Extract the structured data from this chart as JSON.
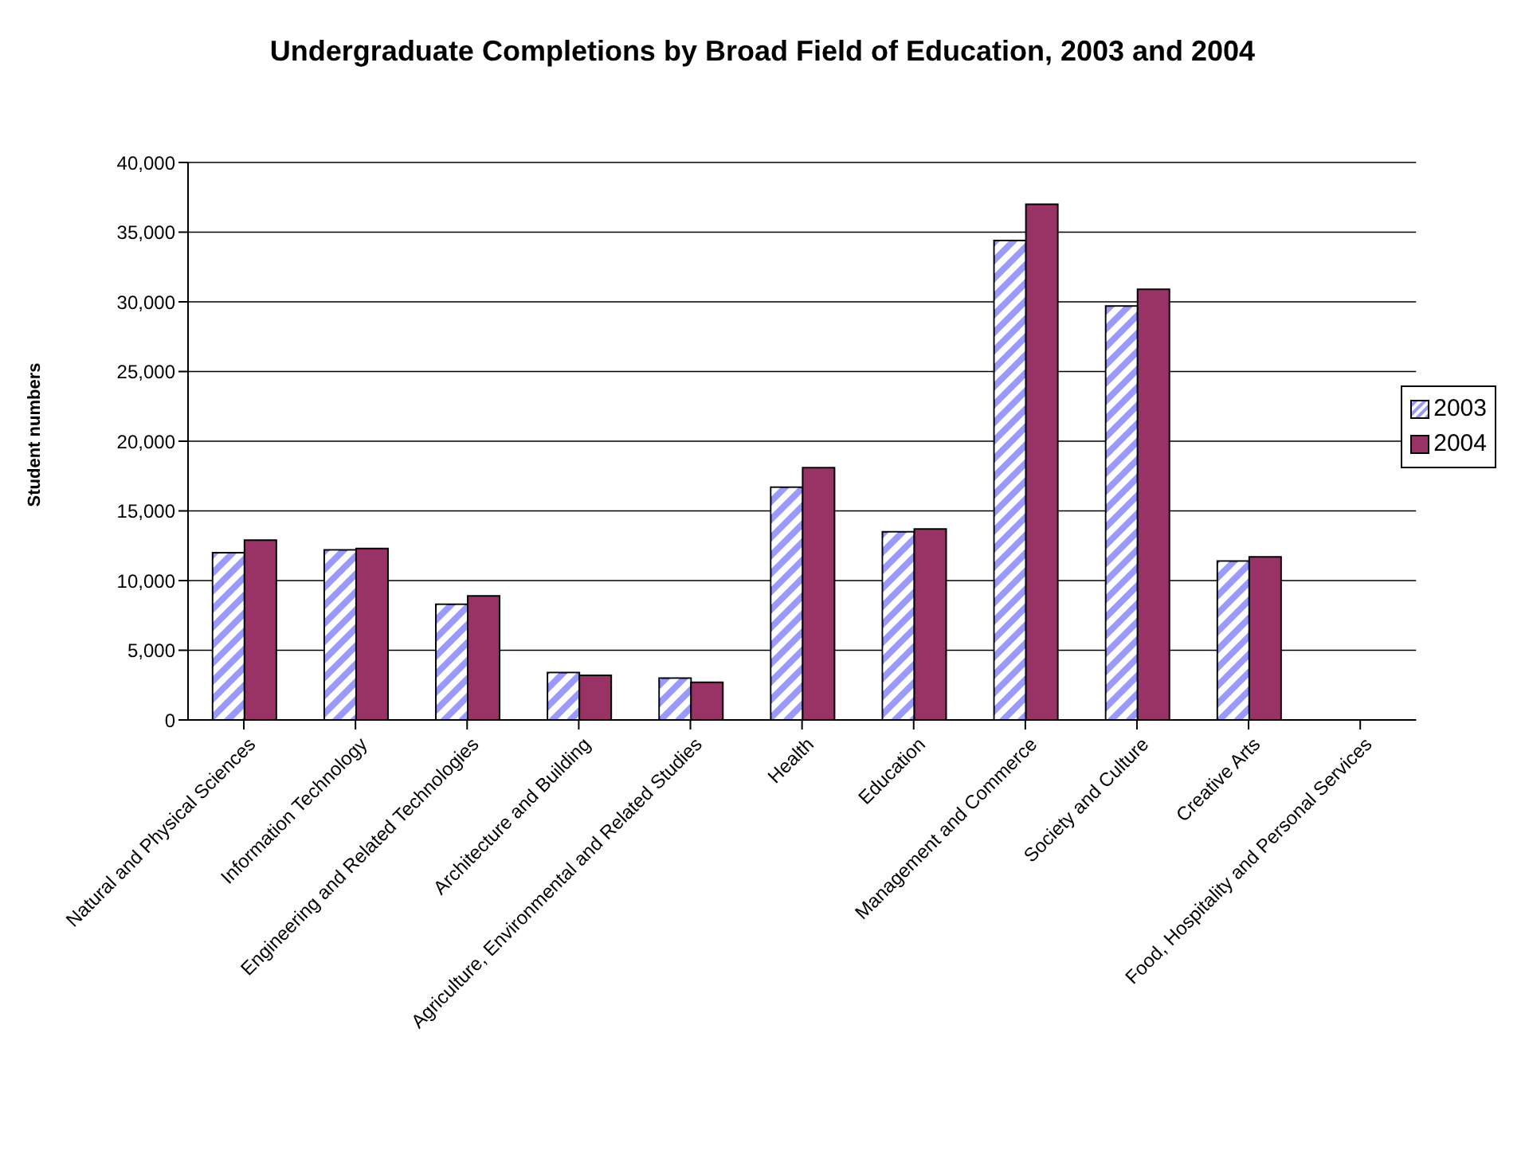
{
  "chart_data": {
    "type": "bar",
    "title": "Undergraduate Completions by Broad Field of Education, 2003 and 2004",
    "ylabel": "Student numbers",
    "categories": [
      "Natural and Physical Sciences",
      "Information Technology",
      "Engineering and Related Technologies",
      "Architecture and Building",
      "Agriculture, Environmental and Related Studies",
      "Health",
      "Education",
      "Management and Commerce",
      "Society and Culture",
      "Creative Arts",
      "Food, Hospitality and Personal Services"
    ],
    "series": [
      {
        "name": "2003",
        "color": "#9999ff",
        "values": [
          12000,
          12200,
          8300,
          3400,
          3000,
          16700,
          13500,
          34400,
          29700,
          11400,
          0
        ]
      },
      {
        "name": "2004",
        "color": "#993366",
        "values": [
          12900,
          12300,
          8900,
          3200,
          2700,
          18100,
          13700,
          37000,
          30900,
          11700,
          0
        ]
      }
    ],
    "ylim": [
      0,
      40000
    ],
    "yticks": [
      0,
      {
        "value": 5000,
        "label": "5,000"
      },
      {
        "value": 10000,
        "label": "10,000"
      },
      {
        "value": 15000,
        "label": "15,000"
      },
      {
        "value": 20000,
        "label": "20,000"
      },
      {
        "value": 25000,
        "label": "25,000"
      },
      {
        "value": 30000,
        "label": "30,000"
      },
      {
        "value": 35000,
        "label": "35,000"
      },
      {
        "value": 40000,
        "label": "40,000"
      }
    ],
    "grid": "y",
    "legend": "right"
  }
}
